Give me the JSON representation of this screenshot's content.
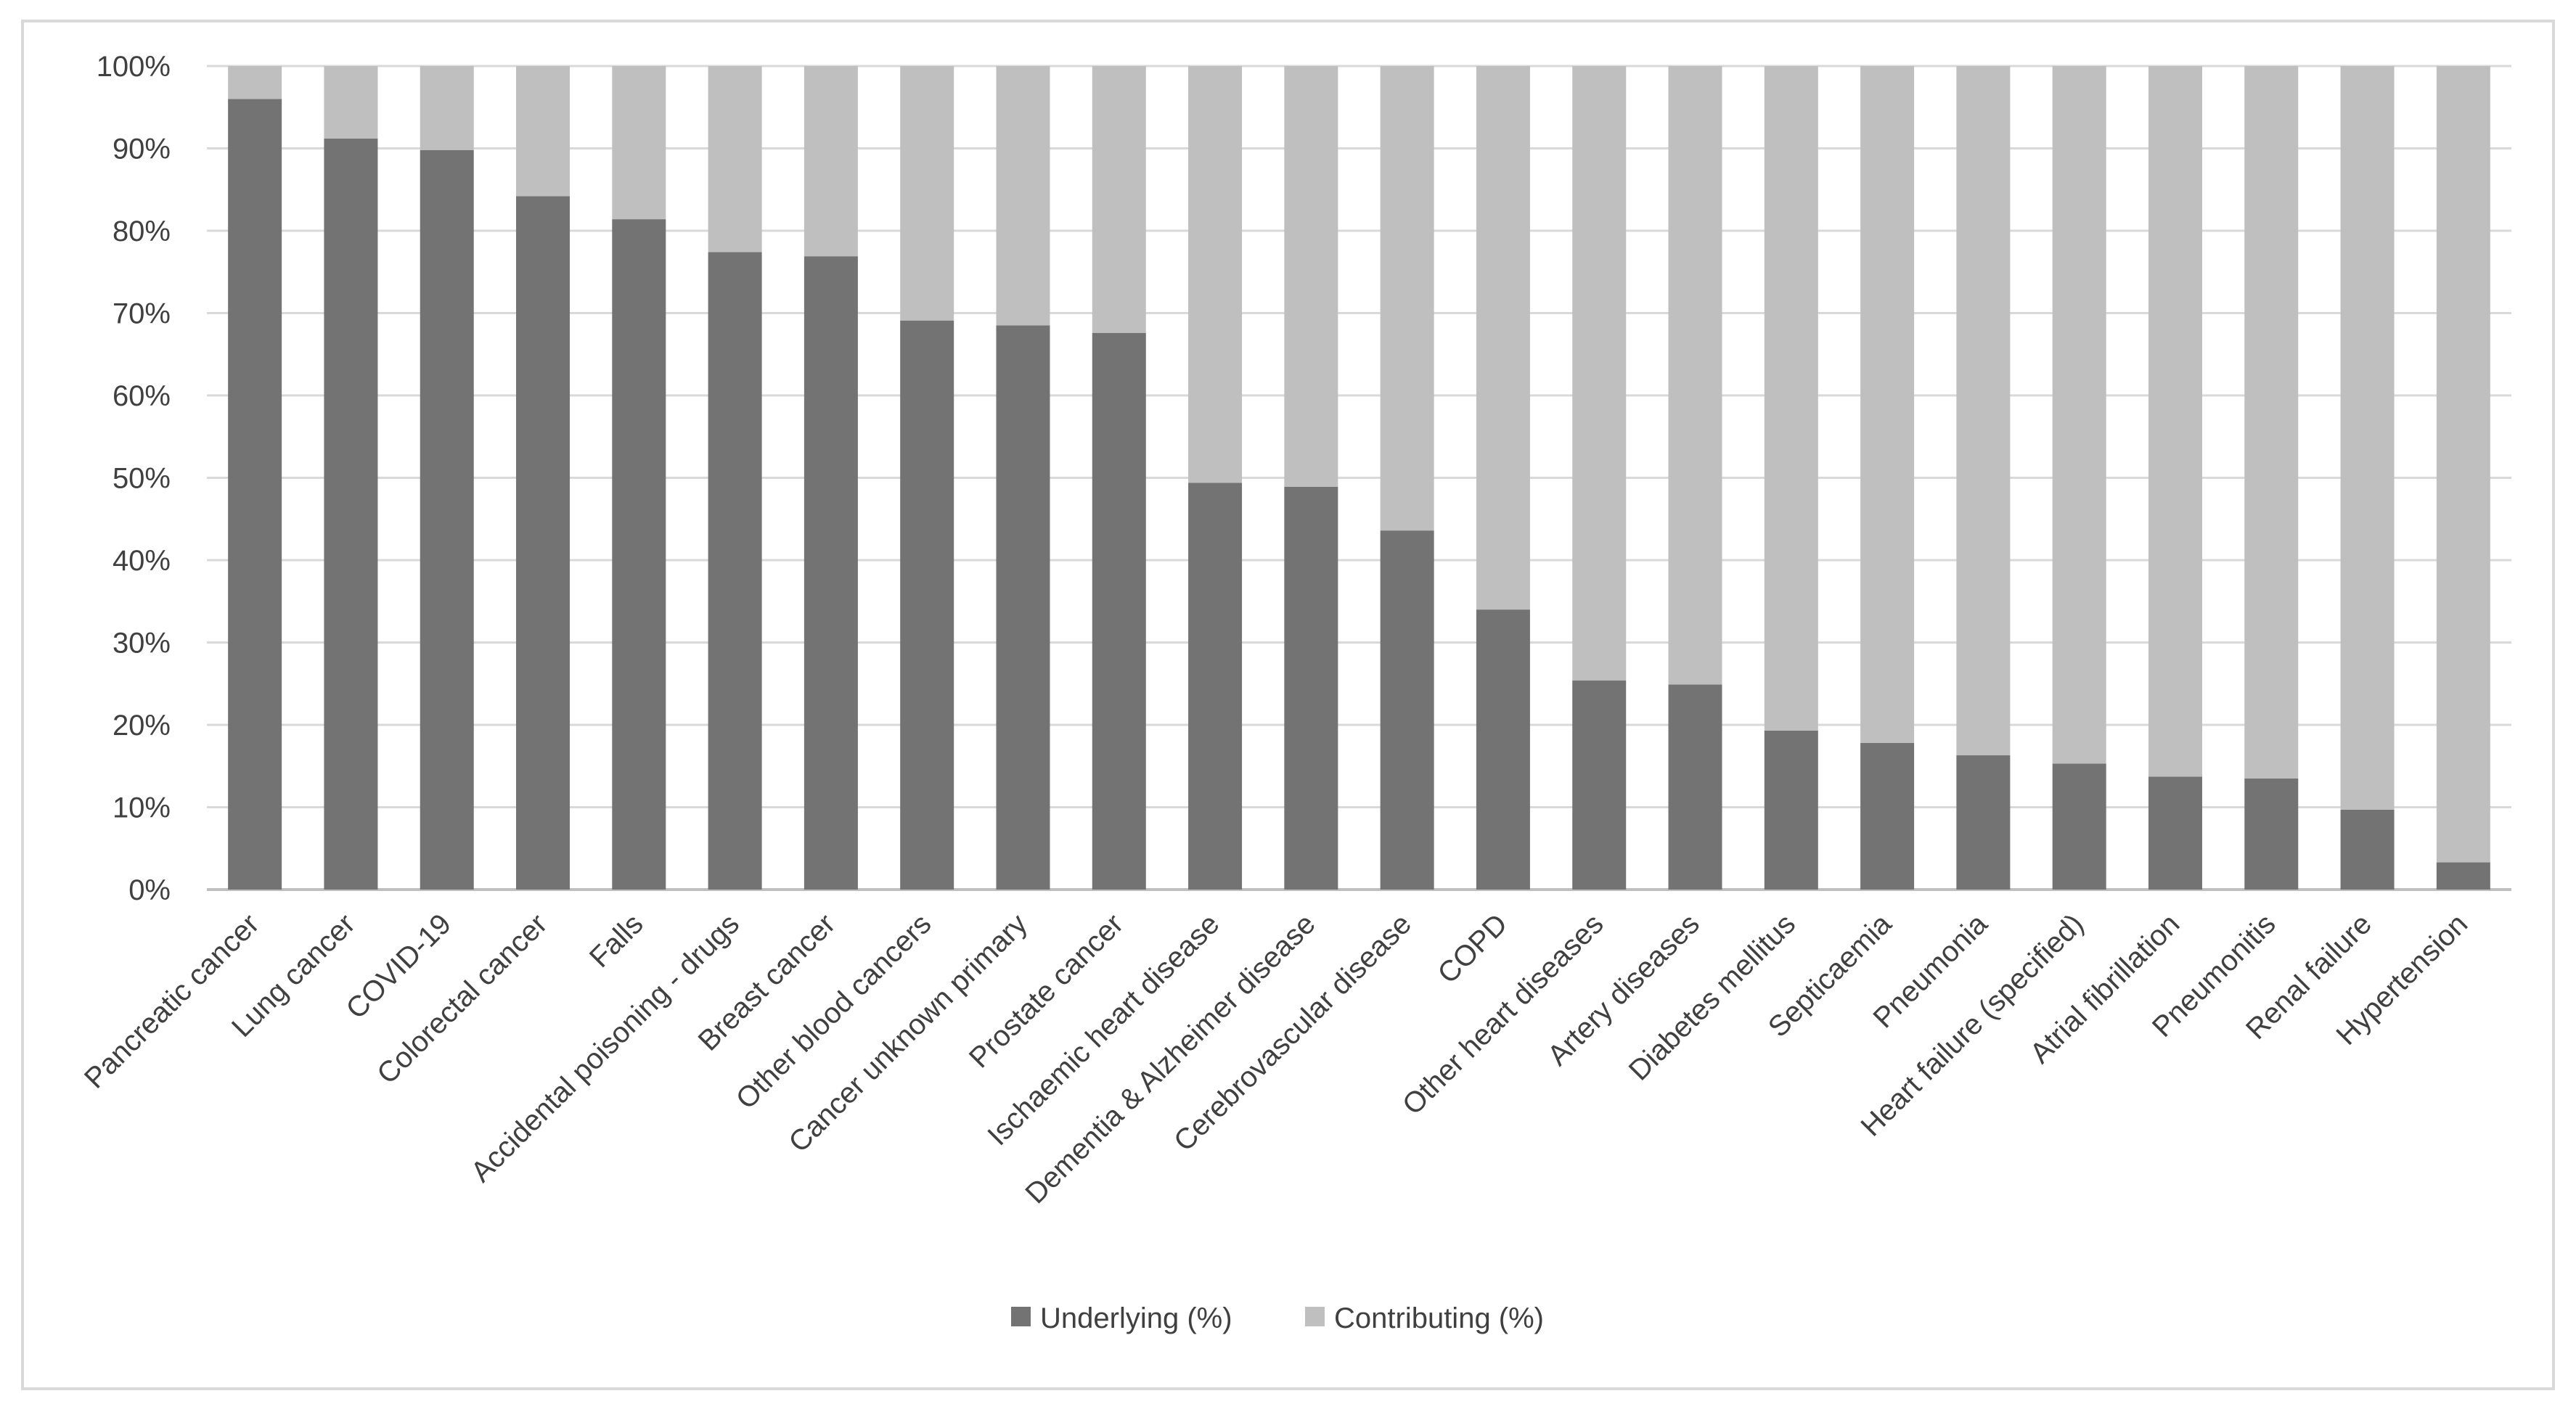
{
  "chart_data": {
    "type": "bar",
    "stacked": true,
    "categories": [
      "Pancreatic cancer",
      "Lung cancer",
      "COVID-19",
      "Colorectal cancer",
      "Falls",
      "Accidental poisoning - drugs",
      "Breast cancer",
      "Other blood cancers",
      "Cancer unknown primary",
      "Prostate cancer",
      "Ischaemic heart disease",
      "Dementia & Alzheimer disease",
      "Cerebrovascular disease",
      "COPD",
      "Other heart diseases",
      "Artery diseases",
      "Diabetes mellitus",
      "Septicaemia",
      "Pneumonia",
      "Heart failure (specified)",
      "Atrial fibrillation",
      "Pneumonitis",
      "Renal failure",
      "Hypertension"
    ],
    "series": [
      {
        "name": "Underlying (%)",
        "color": "#737373",
        "values": [
          96,
          91.2,
          89.8,
          84.2,
          81.4,
          77.4,
          76.9,
          69.1,
          68.5,
          67.6,
          49.4,
          48.9,
          43.6,
          34,
          25.4,
          24.9,
          19.3,
          17.8,
          16.3,
          15.3,
          13.7,
          13.5,
          9.7,
          3.3
        ]
      },
      {
        "name": "Contributing (%)",
        "color": "#bfbfbf",
        "values": [
          4,
          8.8,
          10.2,
          15.8,
          18.6,
          22.6,
          23.1,
          30.9,
          31.5,
          32.4,
          50.6,
          51.1,
          56.4,
          66,
          74.6,
          75.1,
          80.7,
          82.2,
          83.7,
          84.7,
          86.3,
          86.5,
          90.3,
          96.7
        ]
      }
    ],
    "y_ticks": [
      "0%",
      "10%",
      "20%",
      "30%",
      "40%",
      "50%",
      "60%",
      "70%",
      "80%",
      "90%",
      "100%"
    ],
    "ylim": [
      0,
      100
    ],
    "grid": true,
    "legend_position": "bottom"
  }
}
